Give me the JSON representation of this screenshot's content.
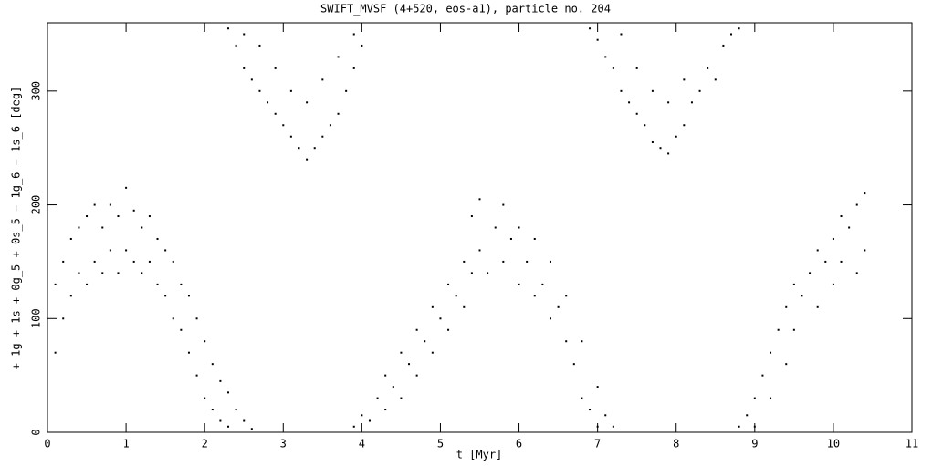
{
  "chart_data": {
    "type": "scatter",
    "title": "SWIFT_MVSF (4+520, eos-a1), particle no. 204",
    "x_label": "t [Myr]",
    "y_label": "+ 1g + 1s + 0g_5 + 0s_5 − 1g_6 − 1s_6 [deg]",
    "color": "#000000",
    "xlim": [
      0,
      11
    ],
    "xticks": [
      0,
      1,
      2,
      3,
      4,
      5,
      6,
      7,
      8,
      9,
      10,
      11
    ],
    "ylim": [
      0,
      360
    ],
    "yticks": [
      0,
      100,
      200,
      300
    ],
    "x": [
      0.1,
      0.1,
      0.2,
      0.2,
      0.3,
      0.3,
      0.4,
      0.4,
      0.5,
      0.5,
      0.6,
      0.6,
      0.7,
      0.7,
      0.8,
      0.8,
      0.9,
      0.9,
      1.0,
      1.0,
      1.1,
      1.1,
      1.2,
      1.2,
      1.3,
      1.3,
      1.4,
      1.4,
      1.5,
      1.5,
      1.6,
      1.6,
      1.7,
      1.7,
      1.8,
      1.8,
      1.9,
      1.9,
      2.0,
      2.0,
      2.1,
      2.1,
      2.2,
      2.2,
      2.3,
      2.3,
      2.4,
      2.5,
      2.6,
      2.3,
      2.4,
      2.5,
      2.5,
      2.6,
      2.7,
      2.7,
      2.8,
      2.9,
      2.9,
      3.0,
      3.1,
      3.1,
      3.2,
      3.3,
      3.3,
      3.4,
      3.5,
      3.5,
      3.6,
      3.7,
      3.7,
      3.8,
      3.9,
      3.9,
      4.0,
      3.9,
      4.0,
      4.1,
      4.2,
      4.3,
      4.3,
      4.4,
      4.5,
      4.5,
      4.6,
      4.7,
      4.7,
      4.8,
      4.9,
      4.9,
      5.0,
      5.1,
      5.1,
      5.2,
      5.3,
      5.3,
      5.4,
      5.4,
      5.5,
      5.5,
      5.6,
      5.7,
      5.8,
      5.8,
      5.9,
      6.0,
      6.0,
      6.1,
      6.2,
      6.2,
      6.3,
      6.4,
      6.4,
      6.5,
      6.6,
      6.6,
      6.7,
      6.8,
      6.8,
      6.9,
      7.0,
      7.0,
      7.1,
      7.2,
      6.9,
      7.0,
      7.1,
      7.2,
      7.3,
      7.3,
      7.4,
      7.5,
      7.5,
      7.6,
      7.7,
      7.7,
      7.8,
      7.9,
      7.9,
      8.0,
      8.1,
      8.1,
      8.2,
      8.3,
      8.4,
      8.5,
      8.6,
      8.7,
      8.8,
      8.8,
      8.9,
      9.0,
      9.0,
      9.1,
      9.2,
      9.2,
      9.3,
      9.4,
      9.4,
      9.5,
      9.5,
      9.6,
      9.7,
      9.8,
      9.8,
      9.9,
      10.0,
      10.0,
      10.1,
      10.1,
      10.2,
      10.3,
      10.3,
      10.4,
      10.4
    ],
    "values": [
      70,
      130,
      100,
      150,
      120,
      170,
      140,
      180,
      130,
      190,
      150,
      200,
      140,
      180,
      160,
      200,
      140,
      190,
      160,
      215,
      150,
      195,
      140,
      180,
      150,
      190,
      130,
      170,
      120,
      160,
      100,
      150,
      90,
      130,
      70,
      120,
      50,
      100,
      30,
      80,
      20,
      60,
      10,
      45,
      5,
      35,
      20,
      10,
      3,
      355,
      340,
      320,
      350,
      310,
      300,
      340,
      290,
      280,
      320,
      270,
      260,
      300,
      250,
      240,
      290,
      250,
      260,
      310,
      270,
      280,
      330,
      300,
      320,
      350,
      340,
      5,
      15,
      10,
      30,
      20,
      50,
      40,
      70,
      30,
      60,
      90,
      50,
      80,
      110,
      70,
      100,
      130,
      90,
      120,
      150,
      110,
      140,
      190,
      160,
      205,
      140,
      180,
      200,
      150,
      170,
      130,
      180,
      150,
      120,
      170,
      130,
      100,
      150,
      110,
      80,
      120,
      60,
      30,
      80,
      20,
      40,
      5,
      15,
      5,
      355,
      345,
      330,
      320,
      300,
      350,
      290,
      280,
      320,
      270,
      255,
      300,
      250,
      245,
      290,
      260,
      270,
      310,
      290,
      300,
      320,
      310,
      340,
      350,
      355,
      5,
      15,
      30,
      5,
      50,
      70,
      30,
      90,
      110,
      60,
      130,
      90,
      120,
      140,
      160,
      110,
      150,
      170,
      130,
      190,
      150,
      180,
      200,
      140,
      160,
      210
    ]
  }
}
